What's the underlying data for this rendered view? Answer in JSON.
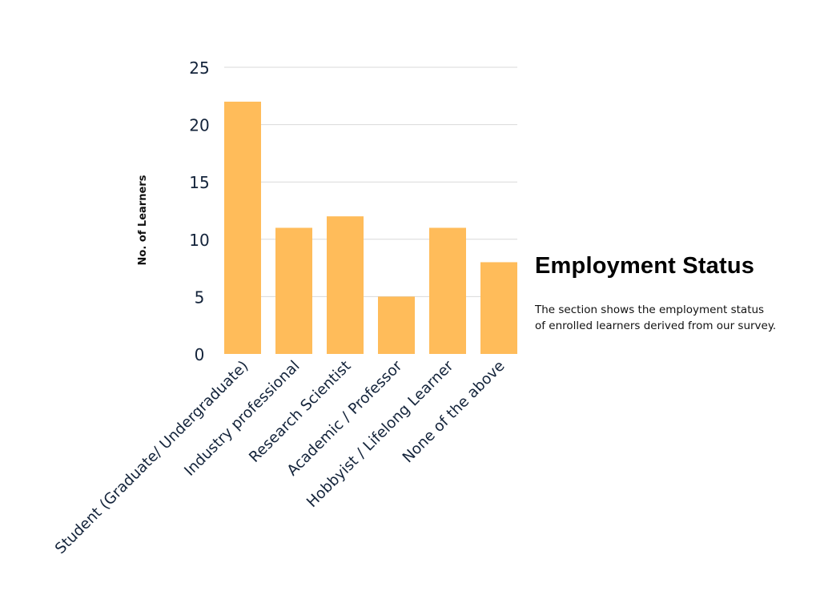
{
  "chart_data": {
    "type": "bar",
    "title": "Employment Status",
    "xlabel": "",
    "ylabel": "No. of Learners",
    "categories": [
      "Student (Graduate/ Undergraduate)",
      "Industry professional",
      "Research Scientist",
      "Academic / Professor",
      "Hobbyist / Lifelong Learner",
      "None of the above"
    ],
    "values": [
      22,
      11,
      12,
      5,
      11,
      8
    ],
    "ylim": [
      0,
      25
    ],
    "yticks": [
      0,
      5,
      10,
      15,
      20,
      25
    ],
    "grid": true,
    "bar_color": "#FFBC5A"
  },
  "side": {
    "title": "Employment Status",
    "line1": "The section shows the employment status",
    "line2": "of enrolled learners derived from our survey."
  }
}
